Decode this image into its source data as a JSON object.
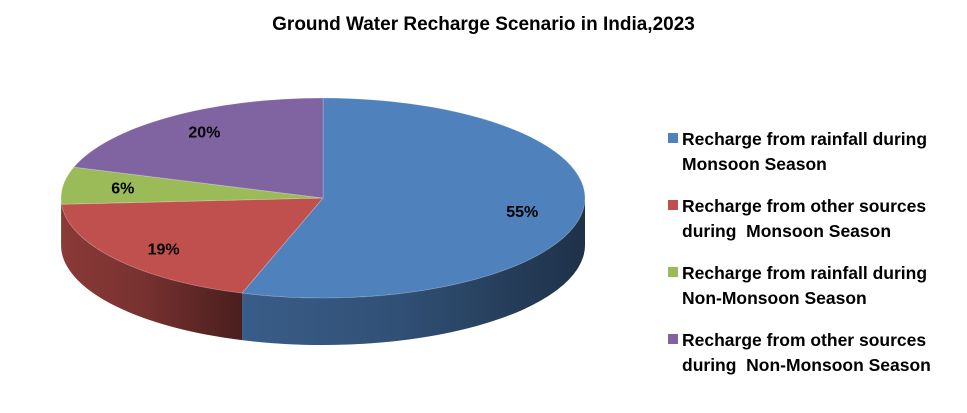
{
  "chart_data": {
    "type": "pie",
    "title": "Ground Water Recharge Scenario in India,2023",
    "slices": [
      {
        "name": "Recharge from rainfall during Monsoon Season",
        "value": 55,
        "label": "55%",
        "color": "#4f81bd"
      },
      {
        "name": "Recharge from other sources during  Monsoon Season",
        "value": 19,
        "label": "19%",
        "color": "#c0504d"
      },
      {
        "name": "Recharge from rainfall during Non-Monsoon Season",
        "value": 6,
        "label": "6%",
        "color": "#9bbb59"
      },
      {
        "name": "Recharge from other sources during  Non-Monsoon Season",
        "value": 20,
        "label": "20%",
        "color": "#8064a2"
      }
    ],
    "legend_position": "right",
    "style": "3d"
  }
}
